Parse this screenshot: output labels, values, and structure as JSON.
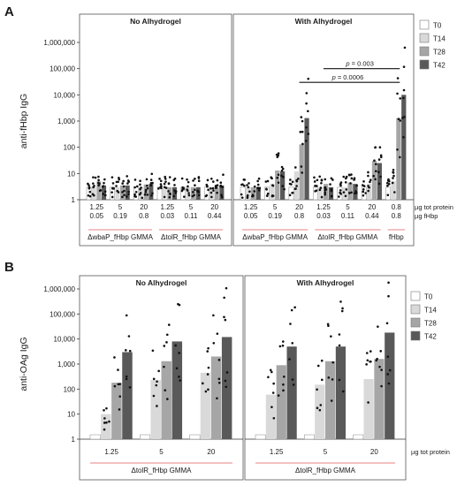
{
  "chart_data": [
    {
      "panel": "A",
      "type": "bar",
      "ylabel": "anti-fHbp IgG",
      "yscale": "log",
      "ylim": [
        1,
        1000000
      ],
      "yticks": [
        "1",
        "10",
        "100",
        "1,000",
        "10,000",
        "100,000",
        "1,000,000"
      ],
      "legend": [
        "T0",
        "T14",
        "T28",
        "T42"
      ],
      "colors": [
        "#ffffff",
        "#d9d9d9",
        "#a6a6a6",
        "#595959"
      ],
      "panels": [
        {
          "title": "No Alhydrogel",
          "groups": [
            {
              "tot": "1.25",
              "fhbp": "0.05",
              "values": [
                3,
                3,
                5,
                3.5
              ]
            },
            {
              "tot": "5",
              "fhbp": "0.19",
              "values": [
                3,
                3,
                3.5,
                3.5
              ]
            },
            {
              "tot": "20",
              "fhbp": "0.8",
              "values": [
                3,
                3,
                3.8,
                4
              ]
            },
            {
              "tot": "1.25",
              "fhbp": "0.03",
              "values": [
                3,
                3,
                3,
                3
              ]
            },
            {
              "tot": "5",
              "fhbp": "0.11",
              "values": [
                3,
                3,
                3,
                3
              ]
            },
            {
              "tot": "20",
              "fhbp": "0.44",
              "values": [
                3,
                3,
                3,
                3.5
              ]
            }
          ],
          "brackets": [
            {
              "label": "ΔwbaP_fHbp GMMA",
              "from": 0,
              "to": 2
            },
            {
              "label": "ΔtolR_fHbp GMMA",
              "from": 3,
              "to": 5
            }
          ]
        },
        {
          "title": "With Alhydrogel",
          "groups": [
            {
              "tot": "1.25",
              "fhbp": "0.05",
              "values": [
                3,
                3,
                3,
                3
              ]
            },
            {
              "tot": "5",
              "fhbp": "0.19",
              "values": [
                3,
                4,
                13,
                12
              ]
            },
            {
              "tot": "20",
              "fhbp": "0.8",
              "values": [
                3,
                12,
                130,
                1300
              ]
            },
            {
              "tot": "1.25",
              "fhbp": "0.03",
              "values": [
                3,
                3,
                4,
                3
              ]
            },
            {
              "tot": "5",
              "fhbp": "0.11",
              "values": [
                3,
                3,
                4.5,
                4
              ]
            },
            {
              "tot": "20",
              "fhbp": "0.44",
              "values": [
                3,
                4,
                30,
                25
              ]
            },
            {
              "tot": "0.8",
              "fhbp": "0.8",
              "values": [
                3,
                5,
                1300,
                10000
              ]
            }
          ],
          "brackets": [
            {
              "label": "ΔwbaP_fHbp GMMA",
              "from": 0,
              "to": 2
            },
            {
              "label": "ΔtolR_fHbp GMMA",
              "from": 3,
              "to": 5
            },
            {
              "label": "fHbp",
              "from": 6,
              "to": 6
            }
          ],
          "significance": [
            {
              "label": "p = 0.003",
              "from": 3,
              "to": 6,
              "y": 100000
            },
            {
              "label": "p = 0.0006",
              "from": 2,
              "to": 6,
              "y": 30000
            }
          ]
        }
      ],
      "row_labels": [
        "µg tot protein",
        "µg fHbp"
      ]
    },
    {
      "panel": "B",
      "type": "bar",
      "ylabel": "anti-OAg IgG",
      "yscale": "log",
      "ylim": [
        1,
        1000000
      ],
      "yticks": [
        "1",
        "10",
        "100",
        "1,000",
        "10,000",
        "100,000",
        "1,000,000"
      ],
      "legend": [
        "T0",
        "T14",
        "T28",
        "T42"
      ],
      "colors": [
        "#ffffff",
        "#d9d9d9",
        "#a6a6a6",
        "#595959"
      ],
      "panels": [
        {
          "title": "No Alhydrogel",
          "groups": [
            {
              "tot": "1.25",
              "values": [
                1.5,
                10,
                180,
                3000
              ]
            },
            {
              "tot": "5",
              "values": [
                1.5,
                230,
                1300,
                8000
              ]
            },
            {
              "tot": "20",
              "values": [
                1.5,
                450,
                2000,
                12000
              ]
            }
          ],
          "brackets": [
            {
              "label": "ΔtolR_fHbp GMMA",
              "from": 0,
              "to": 2
            }
          ]
        },
        {
          "title": "With Alhydrogel",
          "groups": [
            {
              "tot": "1.25",
              "values": [
                1.5,
                60,
                900,
                5000
              ]
            },
            {
              "tot": "5",
              "values": [
                1.5,
                150,
                1300,
                5000
              ]
            },
            {
              "tot": "20",
              "values": [
                1.5,
                250,
                1600,
                18000
              ]
            }
          ],
          "brackets": [
            {
              "label": "ΔtolR_fHbp GMMA",
              "from": 0,
              "to": 2
            }
          ]
        }
      ],
      "row_labels": [
        "µg tot protein"
      ]
    }
  ]
}
